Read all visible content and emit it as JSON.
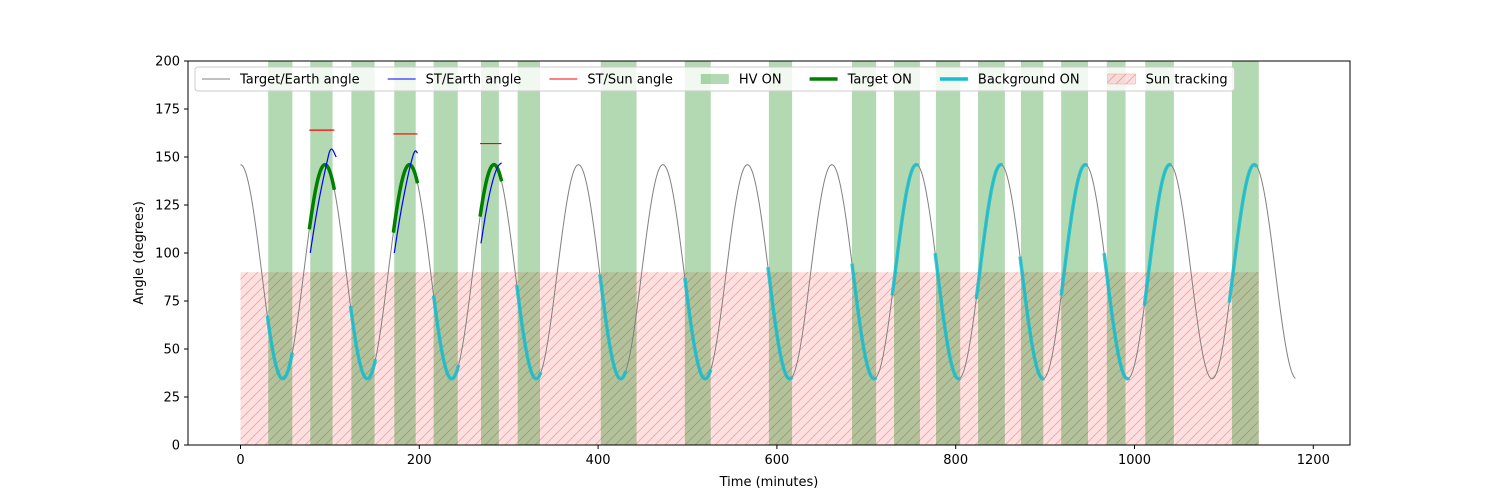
{
  "chart_data": {
    "type": "line",
    "title": "",
    "xlabel": "Time (minutes)",
    "ylabel": "Angle (degrees)",
    "xlim": [
      -60,
      1240
    ],
    "ylim": [
      0,
      200
    ],
    "x_ticks": [
      0,
      200,
      400,
      600,
      800,
      1000,
      1200
    ],
    "y_ticks": [
      0,
      25,
      50,
      75,
      100,
      125,
      150,
      175,
      200
    ],
    "grid": false,
    "legend_position": "top",
    "colors": {
      "target_earth": "#808080",
      "st_earth": "#0000ff",
      "st_sun": "#ff0000",
      "hv_on": "#008000",
      "target_on": "#008000",
      "background_on": "#17becf",
      "sun_tracking": "#ff9999"
    },
    "target_earth_model": {
      "x_start": 0,
      "x_end": 1180,
      "period_minutes": 94.5,
      "max_deg": 146,
      "min_deg": 34.5,
      "first_max_at": 0
    },
    "hv_on_intervals": [
      [
        31,
        58
      ],
      [
        78,
        103
      ],
      [
        124,
        150
      ],
      [
        172,
        196
      ],
      [
        216,
        243
      ],
      [
        269,
        289
      ],
      [
        310,
        335
      ],
      [
        403,
        443
      ],
      [
        497,
        526
      ],
      [
        591,
        617
      ],
      [
        684,
        711
      ],
      [
        731,
        760
      ],
      [
        778,
        805
      ],
      [
        825,
        855
      ],
      [
        873,
        898
      ],
      [
        918,
        948
      ],
      [
        969,
        990
      ],
      [
        1012,
        1044
      ],
      [
        1109,
        1139
      ]
    ],
    "target_on_intervals": [
      [
        77,
        105
      ],
      [
        171,
        198
      ],
      [
        268,
        292
      ]
    ],
    "background_on_intervals": [
      [
        30,
        58
      ],
      [
        123,
        151
      ],
      [
        216,
        244
      ],
      [
        309,
        336
      ],
      [
        402,
        431
      ],
      [
        497,
        526
      ],
      [
        590,
        617
      ],
      [
        684,
        711
      ],
      [
        729,
        758
      ],
      [
        777,
        805
      ],
      [
        823,
        852
      ],
      [
        872,
        899
      ],
      [
        918,
        947
      ],
      [
        966,
        994
      ],
      [
        1011,
        1041
      ],
      [
        1106,
        1137
      ]
    ],
    "st_earth_segments": [
      [
        [
          78,
          100
        ],
        [
          84,
          118
        ],
        [
          90,
          133
        ],
        [
          96,
          146
        ],
        [
          101,
          156
        ],
        [
          107,
          150
        ]
      ],
      [
        [
          172,
          100
        ],
        [
          178,
          118
        ],
        [
          184,
          133
        ],
        [
          190,
          146
        ],
        [
          195,
          154
        ],
        [
          198,
          152
        ]
      ],
      [
        [
          269,
          105
        ],
        [
          275,
          123
        ],
        [
          281,
          136
        ],
        [
          287,
          145
        ],
        [
          292,
          147
        ]
      ]
    ],
    "st_sun_segments": [
      {
        "x": [
          77,
          105
        ],
        "y": 164
      },
      {
        "x": [
          171,
          198
        ],
        "y": 162
      },
      {
        "x": [
          268,
          292
        ],
        "y": 157
      }
    ],
    "sun_tracking": {
      "x": [
        0,
        1139
      ],
      "y": [
        0,
        90
      ]
    },
    "legend": [
      {
        "label": "Target/Earth angle",
        "kind": "line",
        "color": "#808080",
        "width": 1
      },
      {
        "label": "ST/Earth angle",
        "kind": "line",
        "color": "#0000ff",
        "width": 1
      },
      {
        "label": "ST/Sun angle",
        "kind": "line",
        "color": "#ff0000",
        "width": 1
      },
      {
        "label": "HV ON",
        "kind": "patch",
        "color": "#008000"
      },
      {
        "label": "Target ON",
        "kind": "line",
        "color": "#008000",
        "width": 3.5
      },
      {
        "label": "Background ON",
        "kind": "line",
        "color": "#17becf",
        "width": 3.5
      },
      {
        "label": "Sun tracking",
        "kind": "hatch",
        "color": "#ff9999"
      }
    ]
  }
}
